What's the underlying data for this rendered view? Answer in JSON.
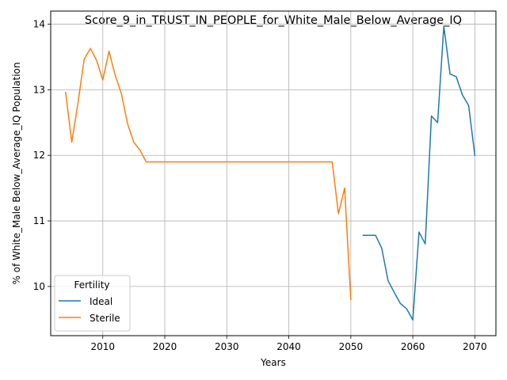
{
  "chart_data": {
    "type": "line",
    "title": "Score_9_in_TRUST_IN_PEOPLE_for_White_Male_Below_Average_IQ",
    "xlabel": "Years",
    "ylabel": "% of White_Male Below_Average_IQ Population",
    "xlim": [
      2001.6,
      2073.4
    ],
    "ylim": [
      9.25,
      14.2
    ],
    "xticks": [
      2010,
      2020,
      2030,
      2040,
      2050,
      2060,
      2070
    ],
    "yticks": [
      10,
      11,
      12,
      13,
      14
    ],
    "grid": true,
    "legend": {
      "title": "Fertility",
      "placement": "lower-left"
    },
    "series": [
      {
        "name": "Ideal",
        "color": "#1f77b4",
        "x": [
          2052,
          2053,
          2054,
          2055,
          2056,
          2057,
          2058,
          2059,
          2060,
          2061,
          2062,
          2063,
          2064,
          2065,
          2066,
          2067,
          2068,
          2069,
          2070
        ],
        "y": [
          10.78,
          10.78,
          10.78,
          10.58,
          10.09,
          9.91,
          9.74,
          9.66,
          9.49,
          10.83,
          10.65,
          12.6,
          12.5,
          13.97,
          13.24,
          13.2,
          12.92,
          12.76,
          12.0
        ]
      },
      {
        "name": "Sterile",
        "color": "#ff7f0e",
        "x": [
          2004,
          2005,
          2006,
          2007,
          2008,
          2009,
          2010,
          2011,
          2012,
          2013,
          2014,
          2015,
          2016,
          2017,
          2018,
          2020,
          2025,
          2030,
          2035,
          2040,
          2045,
          2047,
          2048,
          2049,
          2050
        ],
        "y": [
          12.96,
          12.2,
          12.8,
          13.47,
          13.63,
          13.45,
          13.15,
          13.59,
          13.22,
          12.94,
          12.48,
          12.2,
          12.08,
          11.9,
          11.9,
          11.9,
          11.9,
          11.9,
          11.9,
          11.9,
          11.9,
          11.9,
          11.11,
          11.5,
          9.8
        ]
      }
    ]
  }
}
